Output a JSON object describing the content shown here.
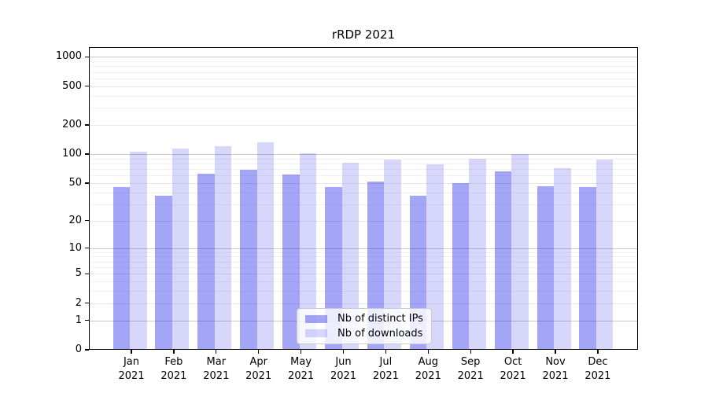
{
  "chart_data": {
    "type": "bar",
    "title": "rRDP 2021",
    "categories": [
      "Jan",
      "Feb",
      "Mar",
      "Apr",
      "May",
      "Jun",
      "Jul",
      "Aug",
      "Sep",
      "Oct",
      "Nov",
      "Dec"
    ],
    "year_label": "2021",
    "series": [
      {
        "name": "Nb of distinct IPs",
        "color": "rgba(10,10,235,0.37)",
        "values": [
          45,
          37,
          63,
          69,
          61,
          45,
          52,
          37,
          50,
          66,
          46,
          45
        ]
      },
      {
        "name": "Nb of downloads",
        "color": "rgba(10,10,235,0.165)",
        "values": [
          105,
          115,
          121,
          132,
          102,
          82,
          88,
          78,
          90,
          100,
          72,
          88
        ]
      }
    ],
    "yscale": "log1p",
    "ylim": [
      0,
      1250
    ],
    "y_ticks": [
      0,
      1,
      2,
      5,
      10,
      20,
      50,
      100,
      200,
      500,
      1000
    ],
    "y_decade_ticks": [
      1,
      10,
      100,
      1000
    ],
    "y_minor_ticks": [
      3,
      4,
      6,
      7,
      8,
      9,
      30,
      40,
      60,
      70,
      80,
      90,
      300,
      400,
      600,
      700,
      800,
      900
    ],
    "xlabel": "",
    "ylabel": "",
    "grid": true,
    "legend_position": "lower center",
    "colors": {
      "grid_decade": "#c9c9c9",
      "grid_major": "#e7e7e7",
      "grid_minor": "#f2f2f2",
      "spine": "#000000",
      "text": "#000000",
      "background": "#ffffff"
    }
  }
}
